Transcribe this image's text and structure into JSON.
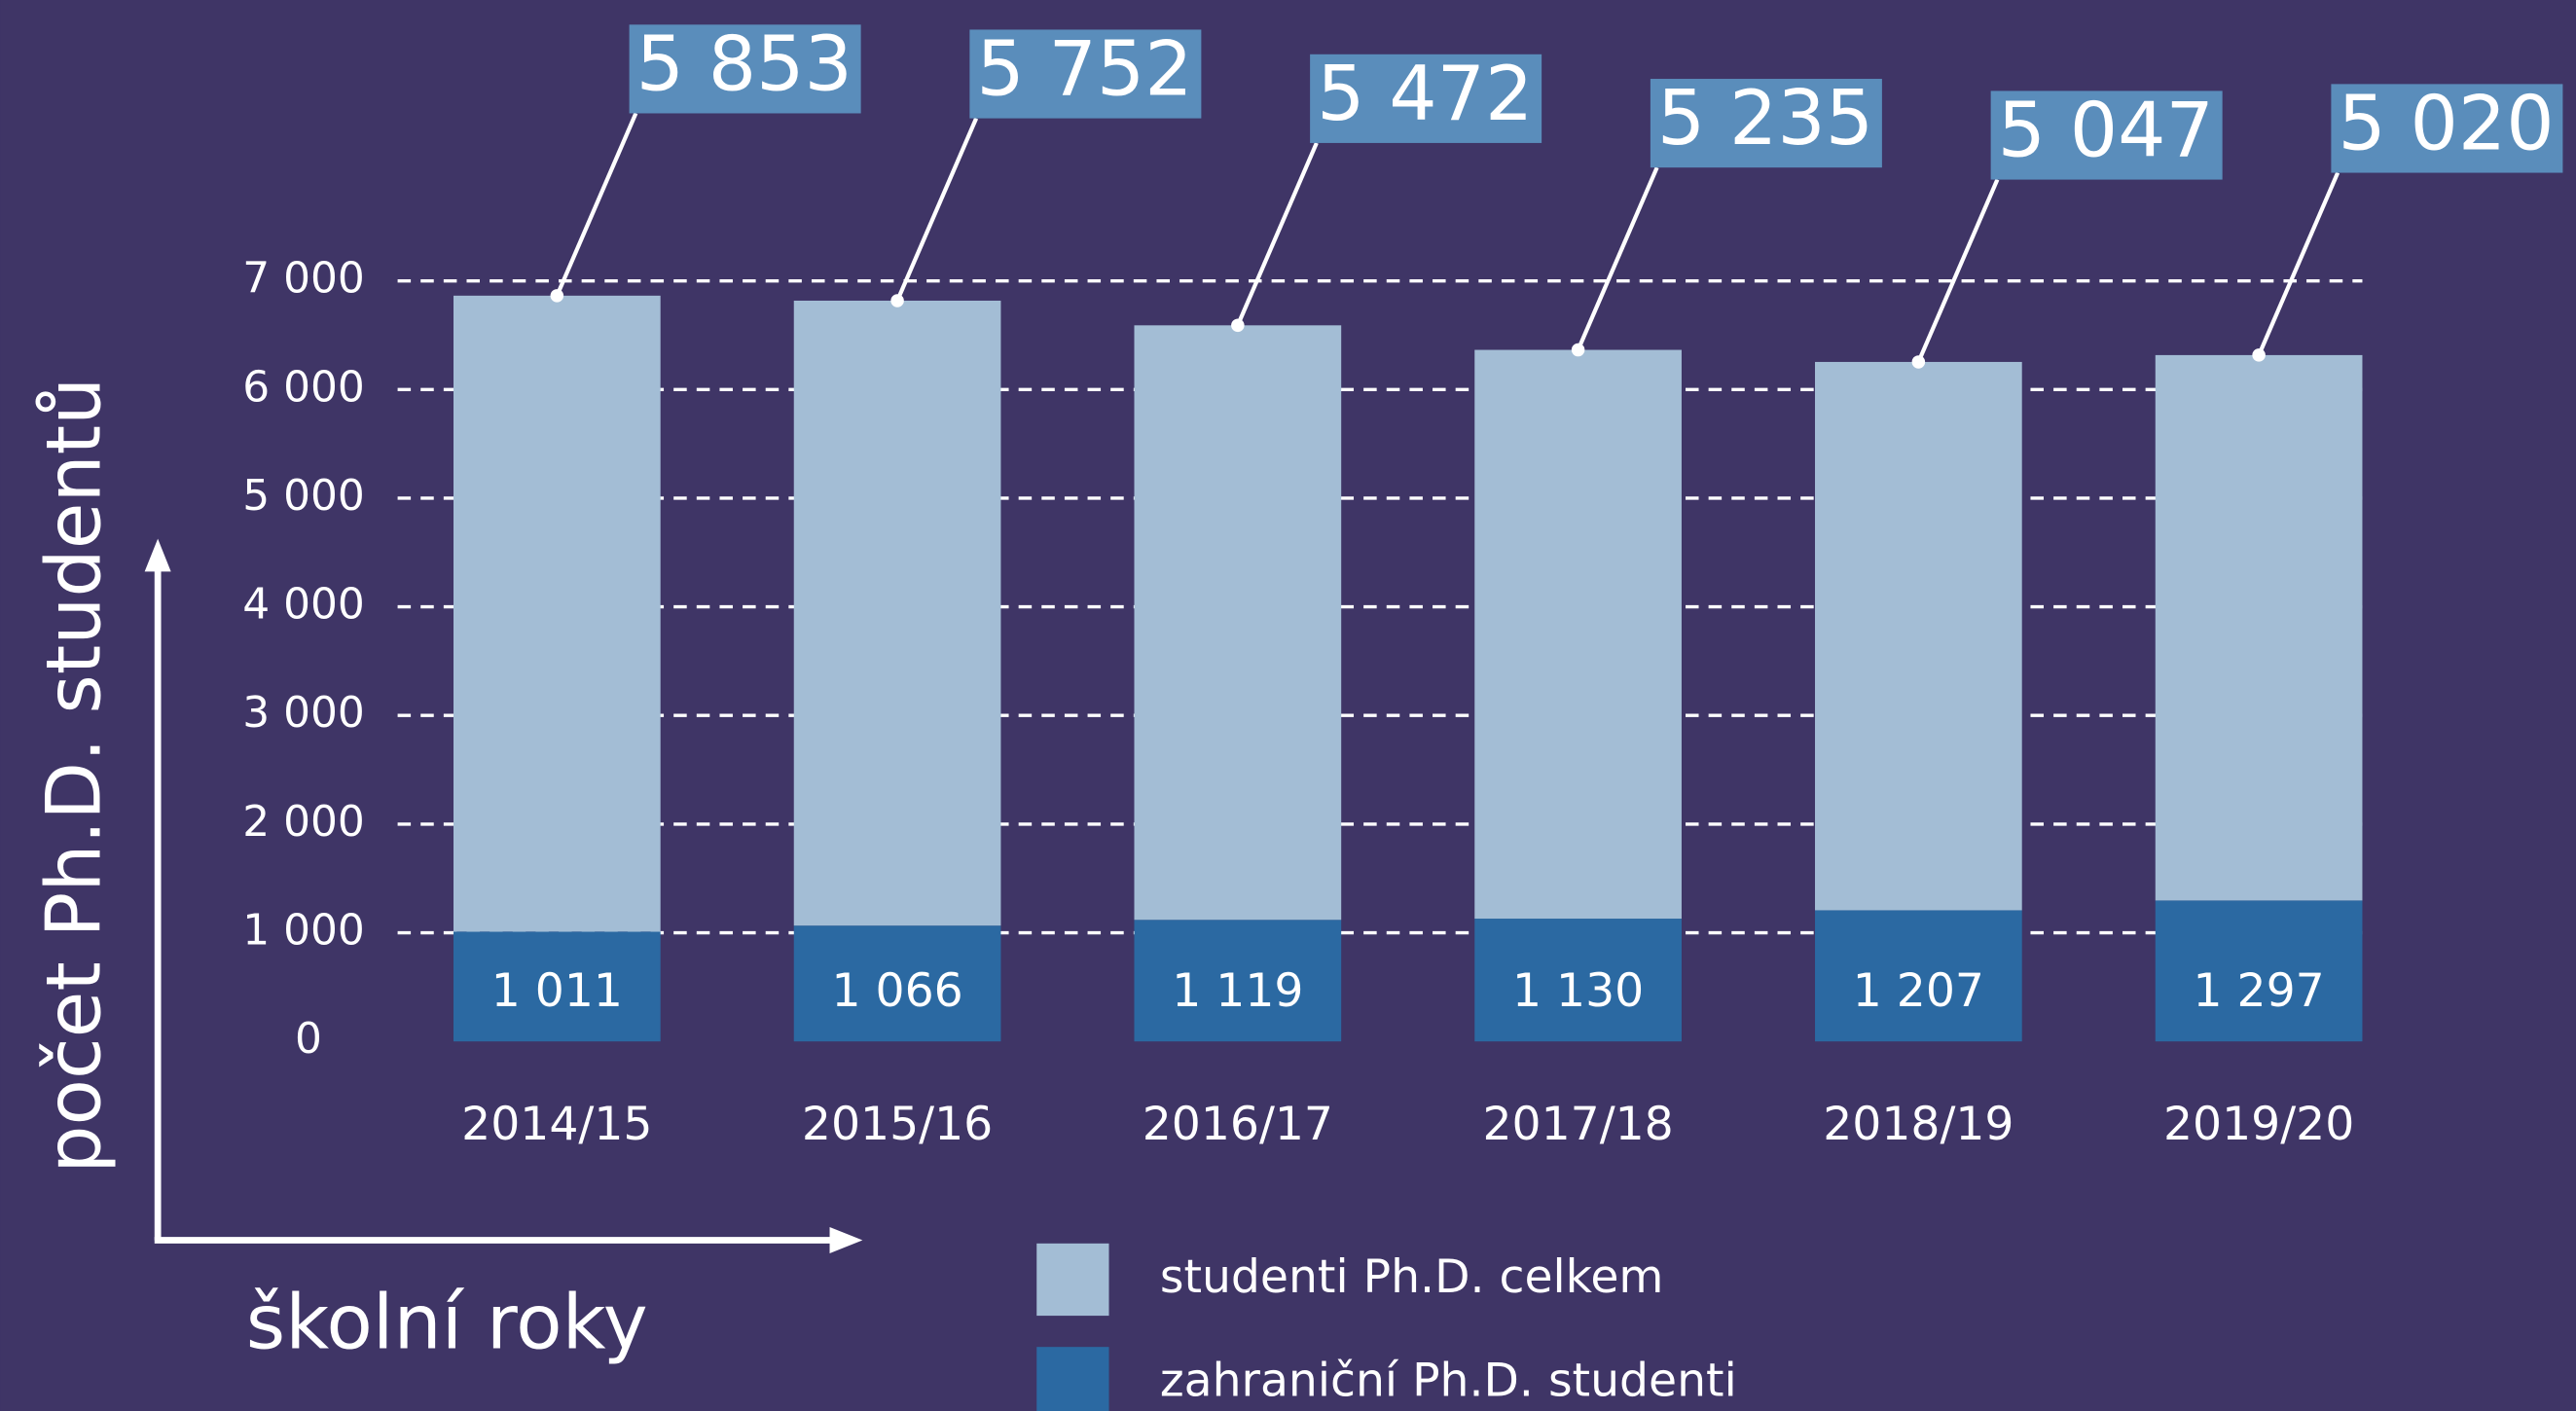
{
  "chart_data": {
    "type": "stacked_bar",
    "categories": [
      "2014/15",
      "2015/16",
      "2016/17",
      "2017/18",
      "2018/19",
      "2019/20"
    ],
    "series": [
      {
        "name": "zahraniční Ph.D. studenti",
        "color": "#2b69a2",
        "values": [
          1011,
          1066,
          1119,
          1130,
          1207,
          1297
        ],
        "value_labels": [
          "1 011",
          "1 066",
          "1 119",
          "1 130",
          "1 207",
          "1 297"
        ]
      },
      {
        "name": "studenti Ph.D. celkem",
        "color": "#a3bdd5",
        "values": [
          5853,
          5752,
          5472,
          5235,
          5047,
          5020
        ],
        "value_labels": [
          "5 853",
          "5 752",
          "5 472",
          "5 235",
          "5 047",
          "5 020"
        ]
      }
    ],
    "ylim": [
      0,
      7000
    ],
    "yticks": [
      0,
      {
        "value": 1000,
        "label": "1 000"
      },
      {
        "value": 2000,
        "label": "2 000"
      },
      {
        "value": 3000,
        "label": "3 000"
      },
      {
        "value": 4000,
        "label": "4 000"
      },
      {
        "value": 5000,
        "label": "5 000"
      },
      {
        "value": 6000,
        "label": "6 000"
      },
      {
        "value": 7000,
        "label": "7 000"
      }
    ],
    "ylabel": "počet Ph.D. studentů",
    "xlabel": "školní roky",
    "grid": true
  }
}
